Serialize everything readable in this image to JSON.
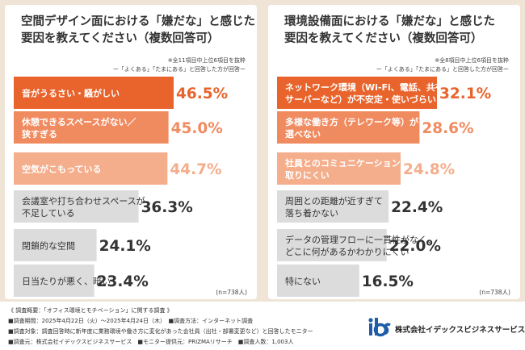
{
  "colors": {
    "background": "#efe4d5",
    "tier1": "#e8642c",
    "tier2": "#f08b60",
    "tier3": "#f4ae8c",
    "gray": "#dcdcdc",
    "accent_text": "#e8642c",
    "gray_text": "#333333",
    "logo_blue": "#1f5da8"
  },
  "chart_data": [
    {
      "type": "bar",
      "orientation": "horizontal",
      "title": "空間デザイン面における「嫌だな」と感じた\n要因を教えてください（複数回答可）",
      "notes": [
        "※全11項目中上位6項目を抜粋",
        "ー「よくある」「たまにある」と回答した方が回答ー"
      ],
      "categories": [
        "音がうるさい・騒がしい",
        "休憩できるスペースがない／\n狭すぎる",
        "空気がこもっている",
        "会議室や打ち合わせスペースが\n不足している",
        "閉鎖的な空間",
        "日当たりが悪く、暗い"
      ],
      "values": [
        46.5,
        45.0,
        44.7,
        36.3,
        24.1,
        23.4
      ],
      "labels": [
        "46.5%",
        "45.0%",
        "44.7%",
        "36.3%",
        "24.1%",
        "23.4%"
      ],
      "tiers": [
        "tier1",
        "tier2",
        "tier3",
        "gray",
        "gray",
        "gray"
      ],
      "n": "(n=738人)"
    },
    {
      "type": "bar",
      "orientation": "horizontal",
      "title": "環境設備面における「嫌だな」と感じた\n要因を教えてください（複数回答可）",
      "notes": [
        "※全8項目中上位6項目を抜粋",
        "ー「よくある」「たまにある」と回答した方が回答ー"
      ],
      "categories": [
        "ネットワーク環境（Wi-Fi、電話、共有\nサーバーなど）が不安定・使いづらい",
        "多様な働き方（テレワーク等）が\n選べない",
        "社員とのコミュニケーションが\n取りにくい",
        "周囲との距離が近すぎて\n落ち着かない",
        "データの管理フローに一貫性がなく、\nどこに何があるかわかりにくい",
        "特にない"
      ],
      "values": [
        32.1,
        28.6,
        24.8,
        22.4,
        22.0,
        16.5
      ],
      "labels": [
        "32.1%",
        "28.6%",
        "24.8%",
        "22.4%",
        "22.0%",
        "16.5%"
      ],
      "tiers": [
        "tier1",
        "tier2",
        "tier3",
        "gray",
        "gray",
        "gray"
      ],
      "n": "(n=738人)"
    }
  ],
  "footer": {
    "lines": [
      "《 調査概要：「オフィス環境とモチベーション」に関する調査 》",
      "■調査期間：2025年4月22日（火）～2025年4月24日（木）　■調査方法：インターネット調査",
      "■調査対象：調査回答時に新年度に業務環境や働き方に変化があった会社員（出社・部署変更など）と回答したモニター",
      "■調査元：株式会社イデックスビジネスサービス　■モニター提供元：PRIZMAリサーチ　■調査人数：1,003人"
    ],
    "company_name": "株式会社イデックスビジネスサービス",
    "logo_icon": "ibs-logo-icon"
  }
}
